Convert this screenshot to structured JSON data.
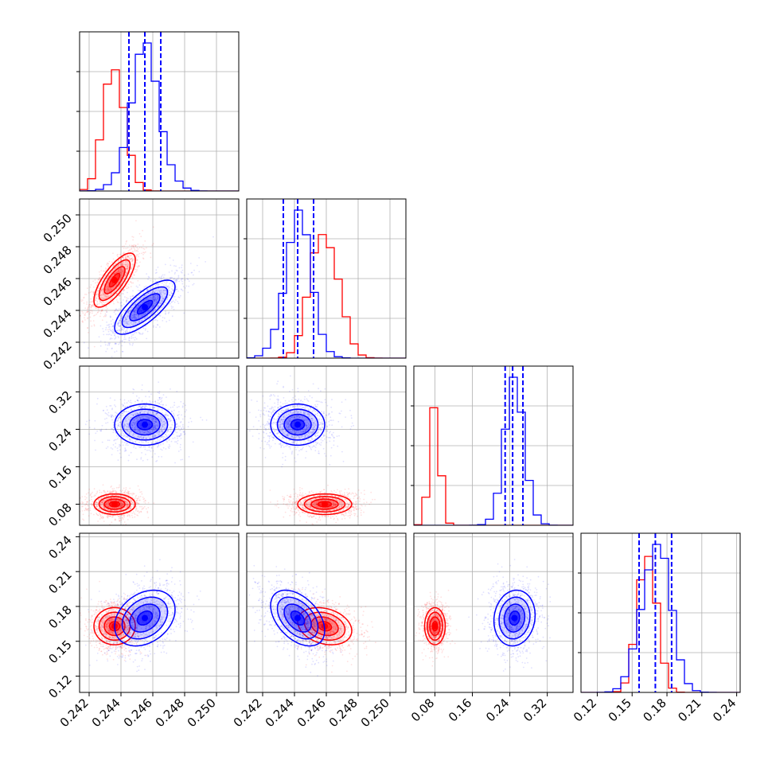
{
  "chart_data": {
    "type": "corner",
    "title": "",
    "params": [
      {
        "name": "",
        "range": [
          0.2414,
          0.2514
        ],
        "ticks": [
          0.242,
          0.244,
          0.246,
          0.248,
          0.25
        ],
        "tick_labels": [
          "0.242",
          "0.244",
          "0.246",
          "0.248",
          "0.250"
        ]
      },
      {
        "name": "",
        "range": [
          0.241,
          0.251
        ],
        "ticks": [
          0.242,
          0.244,
          0.246,
          0.248,
          0.25
        ],
        "tick_labels": [
          "0.242",
          "0.244",
          "0.246",
          "0.248",
          "0.250"
        ]
      },
      {
        "name": "",
        "range": [
          0.035,
          0.375
        ],
        "ticks": [
          0.08,
          0.16,
          0.24,
          0.32
        ],
        "tick_labels": [
          "0.08",
          "0.16",
          "0.24",
          "0.32"
        ]
      },
      {
        "name": "",
        "range": [
          0.106,
          0.243
        ],
        "ticks": [
          0.12,
          0.15,
          0.18,
          0.21,
          0.24
        ],
        "tick_labels": [
          "0.12",
          "0.15",
          "0.18",
          "0.21",
          "0.24"
        ]
      }
    ],
    "series": [
      {
        "color": "#ff0000",
        "means": [
          0.2436,
          0.2459,
          0.08,
          0.163
        ],
        "sigmas": [
          0.00065,
          0.00085,
          0.011,
          0.008
        ],
        "correlations": {
          "1_0": 0.75,
          "2_0": 0.0,
          "2_1": 0.0,
          "3_0": 0.0,
          "3_1": -0.25,
          "3_2": 0.0
        },
        "quantiles": []
      },
      {
        "color": "#0000ff",
        "means": [
          0.2455,
          0.2442,
          0.25,
          0.17
        ],
        "sigmas": [
          0.00095,
          0.00085,
          0.022,
          0.012
        ],
        "correlations": {
          "1_0": 0.75,
          "2_0": 0.0,
          "2_1": 0.0,
          "3_0": 0.3,
          "3_1": -0.45,
          "3_2": 0.1
        },
        "quantiles": [
          [
            0.2445,
            0.2455,
            0.2465
          ],
          [
            0.2433,
            0.2442,
            0.2452
          ],
          [
            0.23,
            0.246,
            0.268
          ],
          [
            0.156,
            0.17,
            0.184
          ]
        ]
      }
    ]
  }
}
